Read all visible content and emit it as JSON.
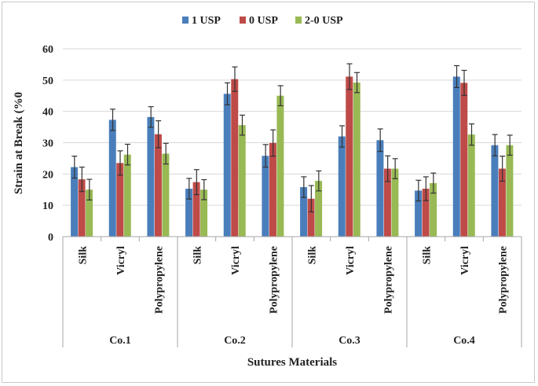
{
  "chart_data": {
    "type": "bar",
    "title": "",
    "xlabel": "Sutures Materials",
    "ylabel": "Strain at Break (%0",
    "ylim": [
      0,
      60
    ],
    "yticks": [
      0,
      10,
      20,
      30,
      40,
      50,
      60
    ],
    "gridlines": true,
    "legend_position": "top-center",
    "groups": [
      "Co.1",
      "Co.2",
      "Co.3",
      "Co.4"
    ],
    "materials": [
      "Silk",
      "Vicryl",
      "Polypropylene"
    ],
    "categories": [
      "Co.1 Silk",
      "Co.1 Vicryl",
      "Co.1 Polypropylene",
      "Co.2 Silk",
      "Co.2 Vicryl",
      "Co.2 Polypropylene",
      "Co.3 Silk",
      "Co.3 Vicryl",
      "Co.3 Polypropylene",
      "Co.4 Silk",
      "Co.4 Vicryl",
      "Co.4 Polypropylene"
    ],
    "series": [
      {
        "name": "1 USP",
        "color": "#4a7ebb",
        "values": [
          22.2,
          37.3,
          38.2,
          15.3,
          45.6,
          25.8,
          15.8,
          32.0,
          30.8,
          14.7,
          51.1,
          29.2
        ],
        "errors": [
          3.5,
          3.4,
          3.3,
          3.3,
          3.5,
          3.6,
          3.3,
          3.4,
          3.6,
          3.3,
          3.5,
          3.4
        ]
      },
      {
        "name": "0 USP",
        "color": "#be4b48",
        "values": [
          18.3,
          23.5,
          32.7,
          17.4,
          50.3,
          29.9,
          12.1,
          51.1,
          21.7,
          15.3,
          49.1,
          21.7
        ],
        "errors": [
          3.9,
          3.9,
          4.3,
          4.0,
          3.9,
          4.2,
          4.2,
          4.1,
          4.1,
          3.8,
          4.0,
          4.0
        ]
      },
      {
        "name": "2-0 USP",
        "color": "#98b954",
        "values": [
          15.0,
          26.2,
          26.5,
          15.0,
          35.6,
          45.0,
          17.8,
          49.2,
          21.7,
          17.1,
          32.6,
          29.2
        ],
        "errors": [
          3.3,
          3.3,
          3.3,
          3.2,
          3.2,
          3.2,
          3.2,
          3.2,
          3.2,
          3.2,
          3.4,
          3.2
        ]
      }
    ]
  }
}
